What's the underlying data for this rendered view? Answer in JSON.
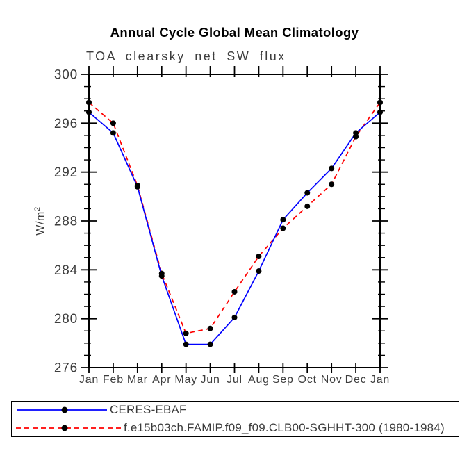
{
  "chart_data": {
    "type": "line",
    "title": "Annual Cycle Global Mean Climatology",
    "subtitle": "TOA clearsky net SW flux",
    "ylabel": "W/m2",
    "ylabel_base": "W/m",
    "ylabel_sup": "2",
    "categories": [
      "Jan",
      "Feb",
      "Mar",
      "Apr",
      "May",
      "Jun",
      "Jul",
      "Aug",
      "Sep",
      "Oct",
      "Nov",
      "Dec",
      "Jan"
    ],
    "ylim": [
      276,
      300
    ],
    "ytick_major": [
      276,
      280,
      284,
      288,
      292,
      296,
      300
    ],
    "ytick_minor_step": 1,
    "grid": false,
    "legend_position": "bottom-left-box",
    "marker": "black-dot",
    "marker_color": "#000000",
    "axis_color": "#000000",
    "label_color": "#3d3d3d",
    "series": [
      {
        "name": "CERES-EBAF",
        "color": "#0000ff",
        "style": "solid",
        "values": [
          296.9,
          295.2,
          290.8,
          283.5,
          277.9,
          277.9,
          280.1,
          283.9,
          288.1,
          290.3,
          292.3,
          295.2,
          296.9
        ]
      },
      {
        "name": "f.e15b03ch.FAMIP.f09_f09.CLB00-SGHHT-300 (1980-1984)",
        "color": "#ff0000",
        "style": "dashed",
        "values": [
          297.7,
          296.0,
          290.9,
          283.7,
          278.8,
          279.2,
          282.2,
          285.1,
          287.4,
          289.2,
          291.0,
          294.9,
          297.7
        ]
      }
    ]
  }
}
